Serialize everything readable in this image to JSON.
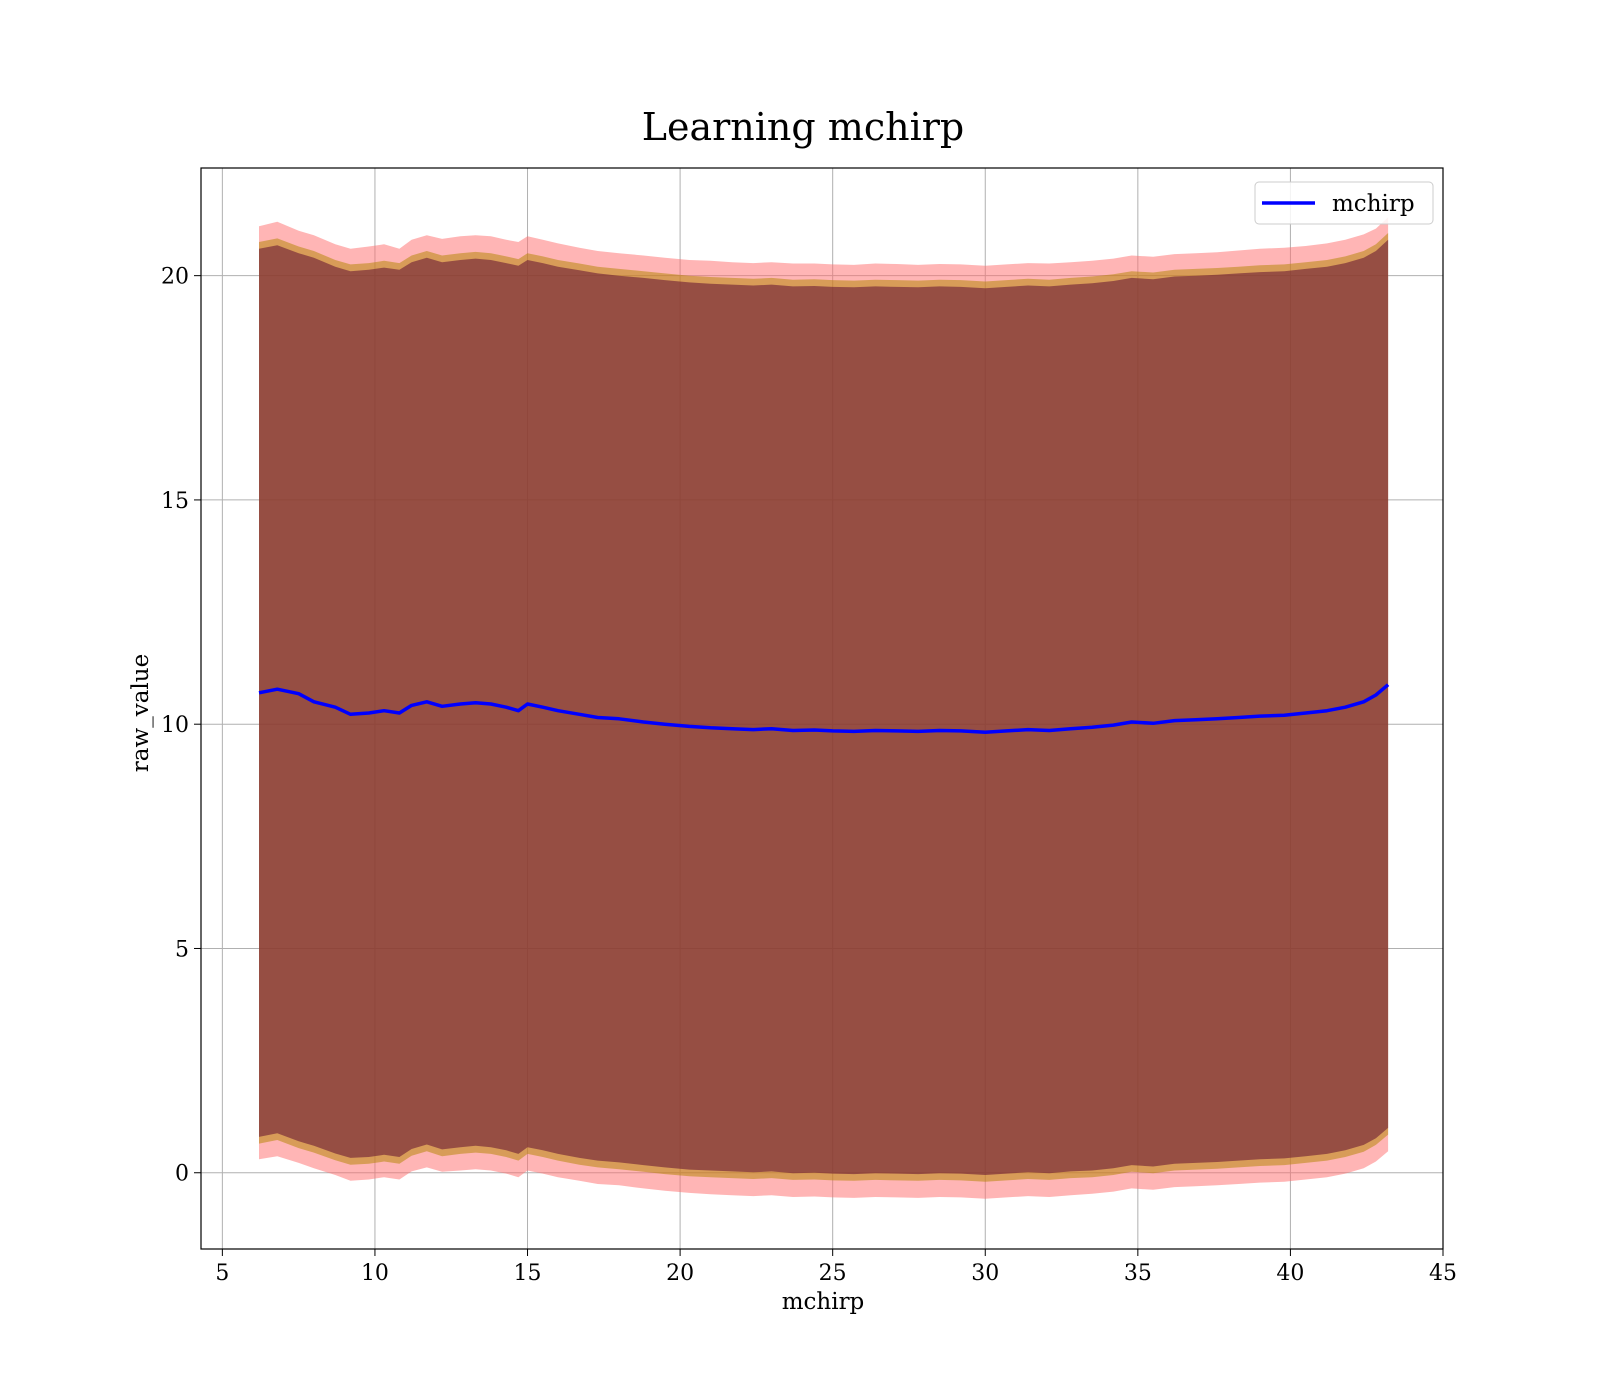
{
  "chart_data": {
    "type": "line",
    "title": "Learning mchirp",
    "xlabel": "mchirp",
    "ylabel": "raw_value",
    "xlim": [
      4.3,
      45
    ],
    "ylim": [
      -1.7,
      22.4
    ],
    "xticks": [
      5,
      10,
      15,
      20,
      25,
      30,
      35,
      40,
      45
    ],
    "yticks": [
      0,
      5,
      10,
      15,
      20
    ],
    "grid": true,
    "legend_position": "top-right",
    "series": [
      {
        "name": "mchirp",
        "color": "#0000ff",
        "x": [
          6.2,
          6.8,
          7.5,
          8.0,
          8.7,
          9.2,
          9.8,
          10.3,
          10.8,
          11.2,
          11.7,
          12.2,
          12.8,
          13.3,
          13.8,
          14.3,
          14.7,
          15.0,
          15.5,
          16.0,
          16.7,
          17.3,
          18.0,
          18.8,
          19.5,
          20.3,
          21.0,
          21.7,
          22.4,
          23.0,
          23.7,
          24.4,
          25.0,
          25.7,
          26.4,
          27.1,
          27.8,
          28.5,
          29.2,
          30.0,
          30.7,
          31.4,
          32.1,
          32.8,
          33.5,
          34.2,
          34.8,
          35.5,
          36.2,
          36.9,
          37.6,
          38.3,
          39.0,
          39.8,
          40.5,
          41.2,
          41.8,
          42.4,
          42.8,
          43.2
        ],
        "y": [
          10.7,
          10.78,
          10.68,
          10.5,
          10.38,
          10.22,
          10.25,
          10.3,
          10.25,
          10.42,
          10.5,
          10.4,
          10.45,
          10.48,
          10.45,
          10.38,
          10.3,
          10.45,
          10.38,
          10.3,
          10.22,
          10.15,
          10.12,
          10.05,
          10.0,
          9.95,
          9.92,
          9.9,
          9.88,
          9.9,
          9.86,
          9.87,
          9.85,
          9.84,
          9.86,
          9.85,
          9.84,
          9.86,
          9.85,
          9.82,
          9.85,
          9.88,
          9.86,
          9.9,
          9.93,
          9.98,
          10.05,
          10.02,
          10.08,
          10.1,
          10.12,
          10.15,
          10.18,
          10.2,
          10.25,
          10.3,
          10.38,
          10.5,
          10.65,
          10.88
        ]
      }
    ],
    "bands": [
      {
        "color": "#ff6b6b",
        "opacity": 0.5,
        "upper": [
          21.1,
          21.2,
          21.0,
          20.9,
          20.7,
          20.6,
          20.65,
          20.7,
          20.6,
          20.8,
          20.9,
          20.82,
          20.88,
          20.9,
          20.88,
          20.8,
          20.75,
          20.88,
          20.8,
          20.72,
          20.62,
          20.55,
          20.5,
          20.45,
          20.4,
          20.35,
          20.33,
          20.3,
          20.28,
          20.3,
          20.27,
          20.27,
          20.25,
          20.24,
          20.27,
          20.26,
          20.24,
          20.26,
          20.25,
          20.22,
          20.25,
          20.28,
          20.27,
          20.3,
          20.33,
          20.38,
          20.45,
          20.42,
          20.48,
          20.5,
          20.52,
          20.56,
          20.6,
          20.62,
          20.66,
          20.72,
          20.8,
          20.92,
          21.05,
          21.3
        ],
        "lower": [
          0.3,
          0.37,
          0.22,
          0.1,
          -0.05,
          -0.18,
          -0.15,
          -0.1,
          -0.15,
          0.03,
          0.12,
          0.02,
          0.05,
          0.08,
          0.05,
          -0.02,
          -0.1,
          0.05,
          -0.02,
          -0.1,
          -0.18,
          -0.25,
          -0.28,
          -0.35,
          -0.4,
          -0.45,
          -0.48,
          -0.5,
          -0.52,
          -0.5,
          -0.54,
          -0.53,
          -0.55,
          -0.56,
          -0.54,
          -0.55,
          -0.56,
          -0.54,
          -0.55,
          -0.58,
          -0.55,
          -0.52,
          -0.54,
          -0.5,
          -0.47,
          -0.42,
          -0.35,
          -0.38,
          -0.32,
          -0.3,
          -0.28,
          -0.25,
          -0.22,
          -0.2,
          -0.15,
          -0.1,
          -0.02,
          0.1,
          0.25,
          0.48
        ]
      },
      {
        "color": "#b8860b",
        "opacity": 0.55,
        "upper": [
          20.75,
          20.83,
          20.65,
          20.55,
          20.35,
          20.25,
          20.28,
          20.33,
          20.28,
          20.45,
          20.55,
          20.45,
          20.5,
          20.53,
          20.5,
          20.43,
          20.37,
          20.5,
          20.43,
          20.35,
          20.27,
          20.2,
          20.15,
          20.1,
          20.05,
          20.0,
          19.97,
          19.95,
          19.93,
          19.95,
          19.91,
          19.92,
          19.9,
          19.89,
          19.91,
          19.9,
          19.89,
          19.91,
          19.9,
          19.87,
          19.9,
          19.93,
          19.91,
          19.95,
          19.98,
          20.03,
          20.1,
          20.07,
          20.13,
          20.15,
          20.17,
          20.2,
          20.23,
          20.25,
          20.3,
          20.35,
          20.43,
          20.55,
          20.7,
          20.95
        ],
        "lower": [
          0.65,
          0.73,
          0.55,
          0.45,
          0.28,
          0.18,
          0.2,
          0.25,
          0.2,
          0.38,
          0.48,
          0.37,
          0.42,
          0.45,
          0.42,
          0.35,
          0.27,
          0.42,
          0.35,
          0.27,
          0.18,
          0.12,
          0.08,
          0.02,
          -0.03,
          -0.08,
          -0.1,
          -0.12,
          -0.14,
          -0.12,
          -0.16,
          -0.15,
          -0.17,
          -0.18,
          -0.16,
          -0.17,
          -0.18,
          -0.16,
          -0.17,
          -0.2,
          -0.17,
          -0.14,
          -0.16,
          -0.12,
          -0.1,
          -0.05,
          0.02,
          -0.01,
          0.05,
          0.07,
          0.09,
          0.12,
          0.15,
          0.17,
          0.22,
          0.27,
          0.35,
          0.47,
          0.62,
          0.85
        ]
      },
      {
        "color": "#6b1a35",
        "opacity": 0.6,
        "upper": [
          20.6,
          20.68,
          20.5,
          20.4,
          20.2,
          20.1,
          20.13,
          20.18,
          20.13,
          20.3,
          20.4,
          20.3,
          20.35,
          20.38,
          20.35,
          20.28,
          20.22,
          20.35,
          20.28,
          20.2,
          20.12,
          20.05,
          20.0,
          19.95,
          19.9,
          19.85,
          19.82,
          19.8,
          19.78,
          19.8,
          19.76,
          19.77,
          19.75,
          19.74,
          19.76,
          19.75,
          19.74,
          19.76,
          19.75,
          19.72,
          19.75,
          19.78,
          19.76,
          19.8,
          19.83,
          19.88,
          19.95,
          19.92,
          19.98,
          20.0,
          20.02,
          20.05,
          20.08,
          20.1,
          20.15,
          20.2,
          20.28,
          20.4,
          20.55,
          20.8
        ],
        "lower": [
          0.8,
          0.88,
          0.7,
          0.6,
          0.43,
          0.33,
          0.35,
          0.4,
          0.35,
          0.53,
          0.63,
          0.52,
          0.57,
          0.6,
          0.57,
          0.5,
          0.42,
          0.57,
          0.5,
          0.42,
          0.33,
          0.27,
          0.23,
          0.17,
          0.12,
          0.07,
          0.05,
          0.03,
          0.01,
          0.03,
          -0.01,
          0.0,
          -0.02,
          -0.03,
          -0.01,
          -0.02,
          -0.03,
          -0.01,
          -0.02,
          -0.05,
          -0.02,
          0.01,
          -0.01,
          0.03,
          0.05,
          0.1,
          0.17,
          0.14,
          0.2,
          0.22,
          0.24,
          0.27,
          0.3,
          0.32,
          0.37,
          0.42,
          0.5,
          0.62,
          0.77,
          1.0
        ]
      }
    ]
  }
}
